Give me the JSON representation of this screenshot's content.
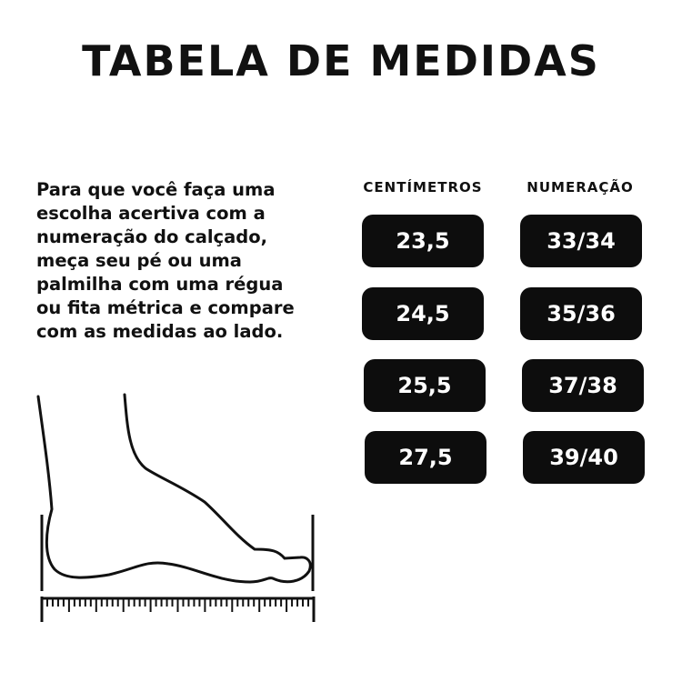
{
  "title": "TABELA DE MEDIDAS",
  "description_lines": [
    "Para que você faça uma",
    "escolha acertiva com a",
    "numeração do calçado,",
    "meça seu pé ou uma",
    "palmilha com uma régua",
    "ou fita métrica e compare",
    "com as medidas ao lado."
  ],
  "table": {
    "headers": [
      "CENTÍMETROS",
      "NUMERAÇÃO"
    ],
    "rows": [
      [
        "23,5",
        "33/34"
      ],
      [
        "24,5",
        "35/36"
      ],
      [
        "25,5",
        "37/38"
      ],
      [
        "27,5",
        "39/40"
      ]
    ]
  },
  "colors": {
    "pill": "#0d0d0d",
    "pill_text": "#ffffff"
  }
}
